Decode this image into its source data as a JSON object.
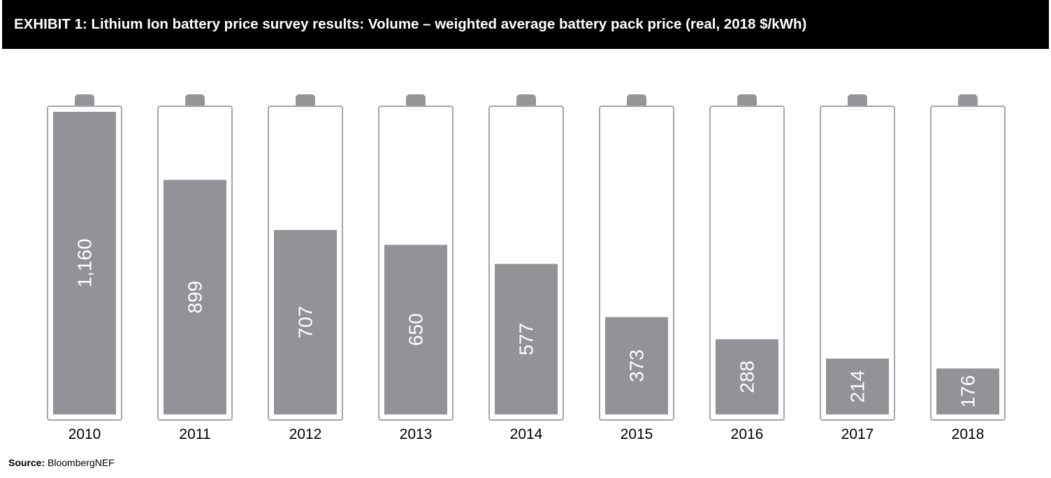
{
  "header": {
    "title": "EXHIBIT 1: Lithium Ion battery price survey results: Volume – weighted average battery pack price (real, 2018 $/kWh)"
  },
  "footer": {
    "source_label": "Source:",
    "source_value": "BloombergNEF"
  },
  "colors": {
    "fill": "#939397",
    "outline": "#a6a6a8",
    "terminal": "#959599",
    "label_text": "#ffffff",
    "title_bg": "#000000"
  },
  "chart_data": {
    "type": "bar",
    "title": "EXHIBIT 1: Lithium Ion battery price survey results: Volume – weighted average battery pack price (real, 2018 $/kWh)",
    "categories": [
      "2010",
      "2011",
      "2012",
      "2013",
      "2014",
      "2015",
      "2016",
      "2017",
      "2018"
    ],
    "values": [
      1160,
      899,
      707,
      650,
      577,
      373,
      288,
      214,
      176
    ],
    "value_labels": [
      "1,160",
      "899",
      "707",
      "650",
      "577",
      "373",
      "288",
      "214",
      "176"
    ],
    "ylim": [
      0,
      1160
    ],
    "grid": false,
    "legend": "none"
  }
}
